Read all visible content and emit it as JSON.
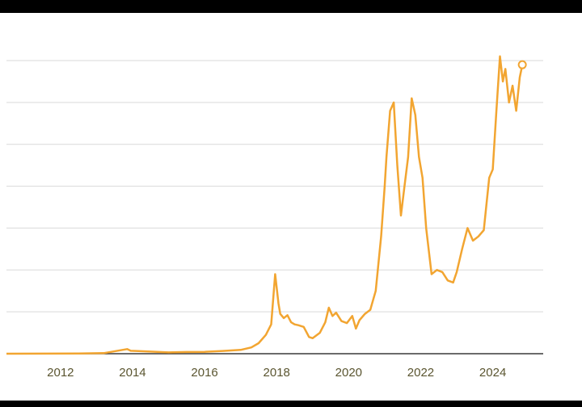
{
  "chart_data": {
    "type": "line",
    "title": "",
    "xlabel": "",
    "ylabel": "",
    "x_ticks": [
      "2012",
      "2014",
      "2016",
      "2018",
      "2020",
      "2022",
      "2024"
    ],
    "xlim": [
      2010.5,
      2025.4
    ],
    "ylim": [
      0,
      70000
    ],
    "y_gridlines": [
      10000,
      20000,
      30000,
      40000,
      50000,
      60000,
      70000
    ],
    "grid": true,
    "line_color": "#f2a531",
    "grid_color": "#d9d9d9",
    "axis_color": "#3a3a3a",
    "tick_label_color": "#5a5530",
    "series": [
      {
        "x": [
          2010.5,
          2011.5,
          2012.5,
          2013.2,
          2013.85,
          2013.95,
          2014.1,
          2014.5,
          2015.0,
          2015.5,
          2016.0,
          2016.5,
          2017.0,
          2017.3,
          2017.5,
          2017.7,
          2017.85,
          2017.96,
          2018.05,
          2018.1,
          2018.2,
          2018.3,
          2018.4,
          2018.5,
          2018.6,
          2018.75,
          2018.9,
          2019.0,
          2019.2,
          2019.35,
          2019.45,
          2019.55,
          2019.65,
          2019.8,
          2019.95,
          2020.1,
          2020.2,
          2020.3,
          2020.45,
          2020.6,
          2020.75,
          2020.9,
          2021.0,
          2021.05,
          2021.15,
          2021.25,
          2021.35,
          2021.45,
          2021.55,
          2021.65,
          2021.75,
          2021.85,
          2021.95,
          2022.05,
          2022.15,
          2022.3,
          2022.45,
          2022.6,
          2022.75,
          2022.9,
          2023.0,
          2023.15,
          2023.3,
          2023.45,
          2023.6,
          2023.75,
          2023.9,
          2024.0,
          2024.1,
          2024.2,
          2024.28,
          2024.35,
          2024.45,
          2024.55,
          2024.65,
          2024.75,
          2024.82
        ],
        "y": [
          0,
          20,
          50,
          130,
          1100,
          700,
          650,
          500,
          300,
          400,
          450,
          650,
          900,
          1500,
          2500,
          4500,
          7000,
          19000,
          12000,
          9500,
          8500,
          9200,
          7500,
          7000,
          6800,
          6400,
          4000,
          3700,
          5000,
          7500,
          11000,
          9000,
          9800,
          7800,
          7300,
          9000,
          6000,
          8000,
          9500,
          10500,
          15000,
          28000,
          40000,
          47000,
          58000,
          60000,
          45000,
          33000,
          40000,
          47000,
          61000,
          57000,
          47000,
          42000,
          30000,
          19000,
          20000,
          19500,
          17500,
          17000,
          19500,
          25000,
          30000,
          27000,
          28000,
          29500,
          42000,
          44000,
          58000,
          71000,
          65000,
          68000,
          60000,
          64000,
          58000,
          66000,
          69000
        ]
      }
    ],
    "endpoint_marker": true
  }
}
